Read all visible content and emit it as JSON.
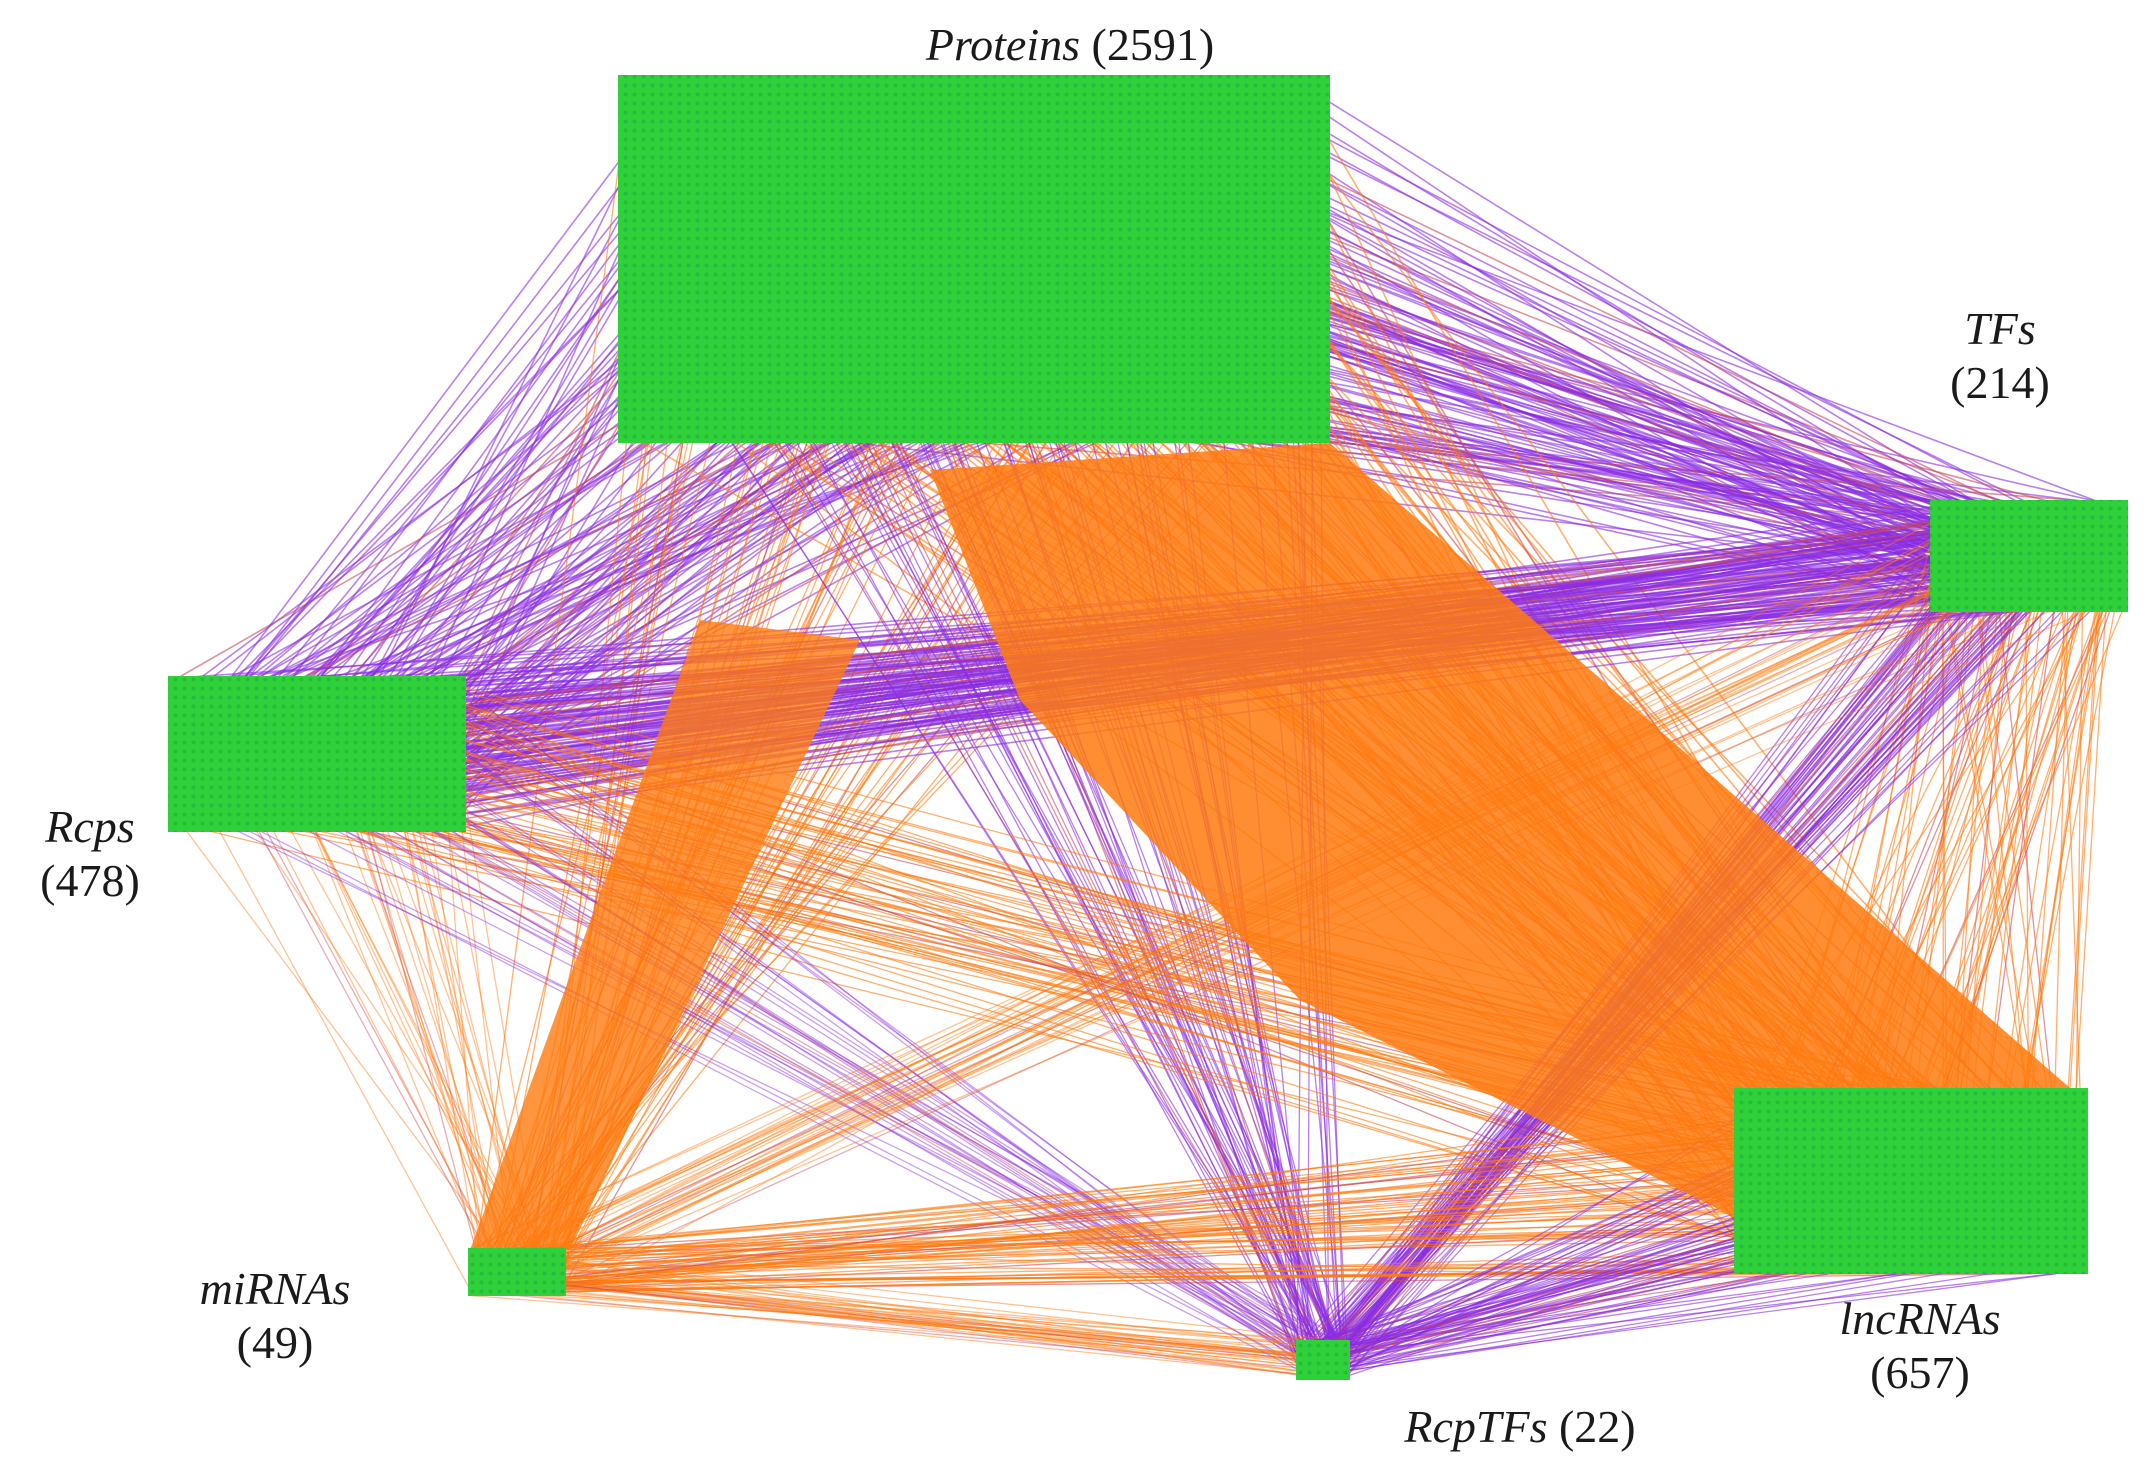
{
  "colors": {
    "node_fill": "#2fd13a",
    "node_dot": "#23a83a",
    "edge_orange": "#ff7a0f",
    "edge_purple": "#8a2be2",
    "edge_mixed": "#c94a5a",
    "label": "#1a1a1a"
  },
  "nodes": [
    {
      "id": "proteins",
      "name": "Proteins",
      "count": "(2591)"
    },
    {
      "id": "tfs",
      "name": "TFs",
      "count": "(214)"
    },
    {
      "id": "rcps",
      "name": "Rcps",
      "count": "(478)"
    },
    {
      "id": "mirnas",
      "name": "miRNAs",
      "count": "(49)"
    },
    {
      "id": "rcptfs",
      "name": "RcpTFs",
      "count": "(22)"
    },
    {
      "id": "lncrnas",
      "name": "lncRNAs",
      "count": "(657)"
    }
  ],
  "edges": [
    {
      "source": "proteins",
      "target": "tfs",
      "color": "purple",
      "density": "heavy"
    },
    {
      "source": "proteins",
      "target": "rcps",
      "color": "purple",
      "density": "heavy"
    },
    {
      "source": "proteins",
      "target": "lncrnas",
      "color": "orange",
      "density": "heavy"
    },
    {
      "source": "proteins",
      "target": "mirnas",
      "color": "orange",
      "density": "medium"
    },
    {
      "source": "proteins",
      "target": "rcptfs",
      "color": "purple",
      "density": "medium"
    },
    {
      "source": "rcps",
      "target": "tfs",
      "color": "purple",
      "density": "heavy"
    },
    {
      "source": "rcps",
      "target": "lncrnas",
      "color": "orange",
      "density": "medium"
    },
    {
      "source": "rcps",
      "target": "mirnas",
      "color": "orange",
      "density": "light"
    },
    {
      "source": "rcps",
      "target": "rcptfs",
      "color": "purple",
      "density": "light"
    },
    {
      "source": "tfs",
      "target": "lncrnas",
      "color": "orange",
      "density": "medium"
    },
    {
      "source": "tfs",
      "target": "rcptfs",
      "color": "purple",
      "density": "medium"
    },
    {
      "source": "tfs",
      "target": "mirnas",
      "color": "orange",
      "density": "light"
    },
    {
      "source": "mirnas",
      "target": "lncrnas",
      "color": "orange",
      "density": "medium"
    },
    {
      "source": "mirnas",
      "target": "rcptfs",
      "color": "orange",
      "density": "light"
    },
    {
      "source": "rcptfs",
      "target": "lncrnas",
      "color": "purple",
      "density": "medium"
    }
  ]
}
